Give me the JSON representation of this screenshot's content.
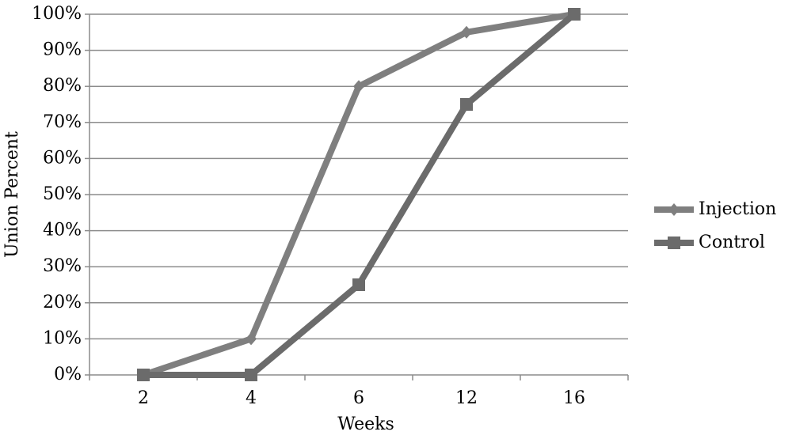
{
  "chart_data": {
    "type": "line",
    "x_label": "Weeks",
    "y_label": "Union Percent",
    "categories": [
      "2",
      "4",
      "6",
      "12",
      "16"
    ],
    "series": [
      {
        "name": "Injection",
        "color": "#7f7f7f",
        "marker": "diamond",
        "values": [
          0,
          10,
          80,
          95,
          100
        ]
      },
      {
        "name": "Control",
        "color": "#6b6b6b",
        "marker": "square",
        "values": [
          0,
          0,
          25,
          75,
          100
        ]
      }
    ],
    "ylim": [
      0,
      100
    ],
    "yticks": [
      {
        "value": 0,
        "label": "0%"
      },
      {
        "value": 10,
        "label": "10%"
      },
      {
        "value": 20,
        "label": "20%"
      },
      {
        "value": 30,
        "label": "30%"
      },
      {
        "value": 40,
        "label": "40%"
      },
      {
        "value": 50,
        "label": "50%"
      },
      {
        "value": 60,
        "label": "60%"
      },
      {
        "value": 70,
        "label": "70%"
      },
      {
        "value": 80,
        "label": "80%"
      },
      {
        "value": 90,
        "label": "90%"
      },
      {
        "value": 100,
        "label": "100%"
      }
    ],
    "grid": true,
    "legend": "right"
  }
}
